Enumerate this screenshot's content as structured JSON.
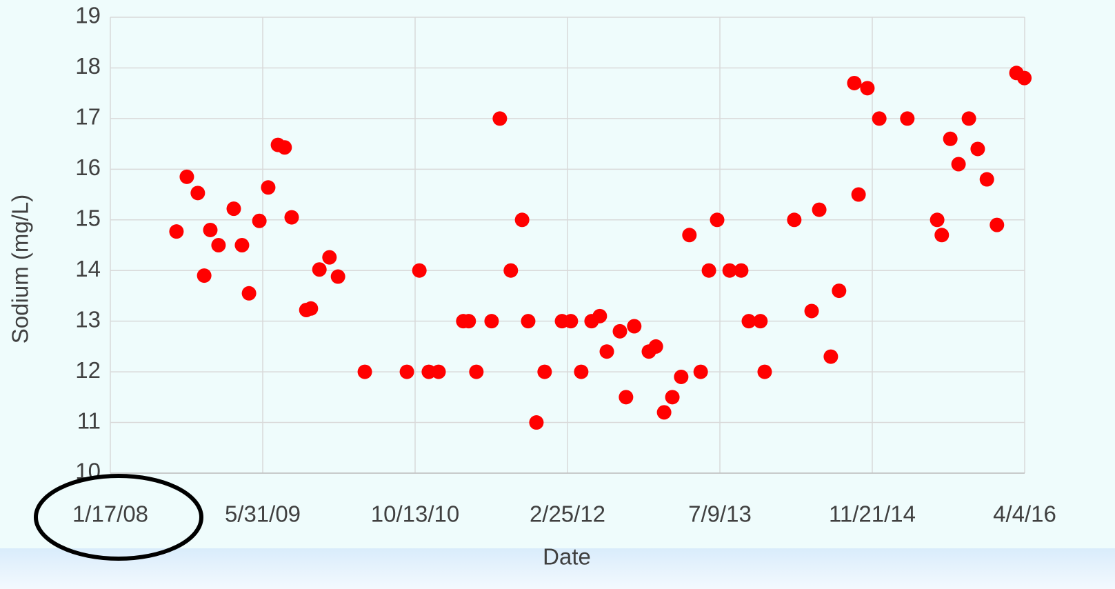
{
  "chart_data": {
    "type": "scatter",
    "x_label": "Date",
    "y_label": "Sodium (mg/L)",
    "color": "#ff0000",
    "grid": true,
    "xlim": [
      39464,
      42464
    ],
    "ylim": [
      10,
      19
    ],
    "xticks": [
      {
        "value": 39464,
        "label": "1/17/08"
      },
      {
        "value": 39964,
        "label": "5/31/09"
      },
      {
        "value": 40464,
        "label": "10/13/10"
      },
      {
        "value": 40964,
        "label": "2/25/12"
      },
      {
        "value": 41464,
        "label": "7/9/13"
      },
      {
        "value": 41964,
        "label": "11/21/14"
      },
      {
        "value": 42464,
        "label": "4/4/16"
      }
    ],
    "yticks": [
      10,
      11,
      12,
      13,
      14,
      15,
      16,
      17,
      18,
      19
    ],
    "x": [
      39681,
      39715,
      39751,
      39772,
      39792,
      39819,
      39869,
      39896,
      39919,
      39953,
      39982,
      40014,
      40036,
      40059,
      40107,
      40122,
      40150,
      40183,
      40211,
      40299,
      40437,
      40478,
      40509,
      40541,
      40622,
      40640,
      40665,
      40715,
      40742,
      40778,
      40815,
      40835,
      40862,
      40889,
      40946,
      40975,
      41009,
      41043,
      41070,
      41093,
      41136,
      41156,
      41183,
      41231,
      41254,
      41281,
      41308,
      41337,
      41364,
      41401,
      41428,
      41455,
      41496,
      41534,
      41559,
      41597,
      41611,
      41708,
      41765,
      41790,
      41828,
      41855,
      41905,
      41919,
      41948,
      41987,
      42079,
      42177,
      42192,
      42220,
      42247,
      42281,
      42310,
      42340,
      42373,
      42437,
      42463
    ],
    "values": [
      14.77,
      15.85,
      15.53,
      13.9,
      14.8,
      14.5,
      15.22,
      14.5,
      13.55,
      14.98,
      15.64,
      16.48,
      16.43,
      15.05,
      13.22,
      13.25,
      14.02,
      14.26,
      13.88,
      12,
      12,
      14,
      12,
      12,
      13,
      13,
      12,
      13,
      17,
      14,
      15,
      13,
      11,
      12,
      13,
      13,
      12,
      13,
      13.1,
      12.4,
      12.8,
      11.5,
      12.9,
      12.4,
      12.5,
      11.2,
      11.5,
      11.9,
      14.7,
      12,
      14,
      15,
      14,
      14,
      13,
      13,
      12,
      15,
      13.2,
      15.2,
      12.3,
      13.6,
      17.7,
      15.5,
      17.6,
      17,
      17,
      15,
      14.7,
      16.6,
      16.1,
      17,
      16.4,
      15.8,
      14.9,
      17.9,
      17.8
    ]
  }
}
